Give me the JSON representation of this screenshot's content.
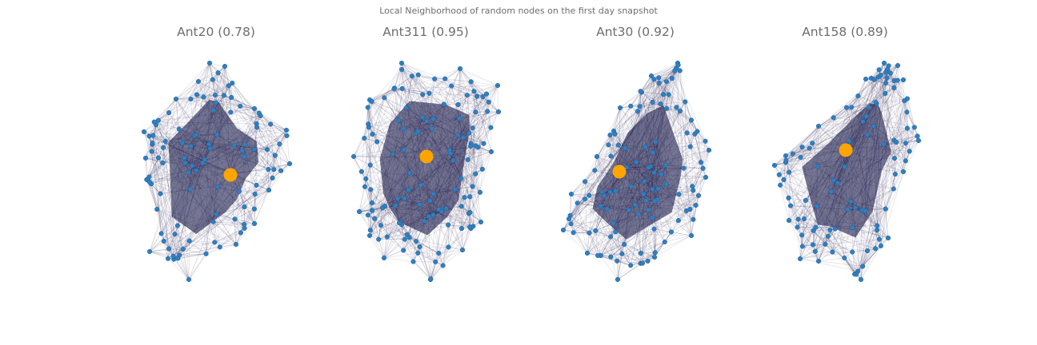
{
  "figure": {
    "title": "Local Neighborhood of random nodes on the first day snapshot"
  },
  "colors": {
    "node": "#2f7fc1",
    "node_outline": "#1f5f99",
    "edge": "#0c0a40",
    "core": "#03063a",
    "highlight": "#ffa500"
  },
  "panels": [
    {
      "title": "Ant20 (0.78)",
      "node_count": 110,
      "seed": 20
    },
    {
      "title": "Ant311 (0.95)",
      "node_count": 130,
      "seed": 311
    },
    {
      "title": "Ant30 (0.92)",
      "node_count": 120,
      "seed": 30
    },
    {
      "title": "Ant158 (0.89)",
      "node_count": 110,
      "seed": 158
    }
  ]
}
